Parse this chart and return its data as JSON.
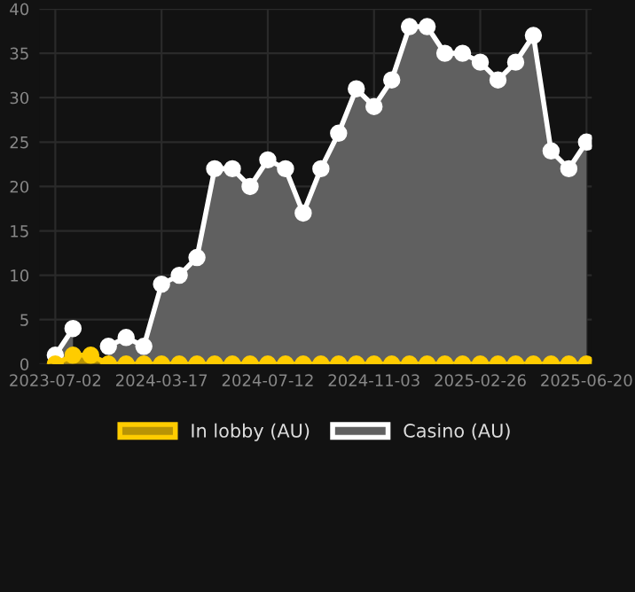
{
  "chart_data": {
    "type": "area",
    "categories": [
      "2023-07-02",
      null,
      null,
      null,
      null,
      null,
      "2024-03-17",
      null,
      null,
      null,
      null,
      null,
      "2024-07-12",
      null,
      null,
      null,
      null,
      null,
      "2024-11-03",
      null,
      null,
      null,
      null,
      null,
      "2025-02-26",
      null,
      null,
      null,
      null,
      null,
      "2025-06-20"
    ],
    "series": [
      {
        "name": "In lobby (AU)",
        "color": "#ffcc00",
        "values": [
          0,
          1,
          1,
          0,
          0,
          0,
          0,
          0,
          0,
          0,
          0,
          0,
          0,
          0,
          0,
          0,
          0,
          0,
          0,
          0,
          0,
          0,
          0,
          0,
          0,
          0,
          0,
          0,
          0,
          0,
          0
        ]
      },
      {
        "name": "Casino (AU)",
        "color": "#ffffff",
        "values": [
          1,
          4,
          null,
          2,
          3,
          2,
          9,
          10,
          12,
          22,
          22,
          20,
          23,
          22,
          17,
          22,
          26,
          31,
          29,
          32,
          38,
          38,
          35,
          35,
          34,
          32,
          34,
          37,
          24,
          22,
          25
        ]
      }
    ],
    "ylim": [
      0,
      40
    ],
    "yticks": [
      0,
      5,
      10,
      15,
      20,
      25,
      30,
      35,
      40
    ],
    "grid": true,
    "legend": "bottom",
    "marker": "circle",
    "line_style": "solid"
  }
}
